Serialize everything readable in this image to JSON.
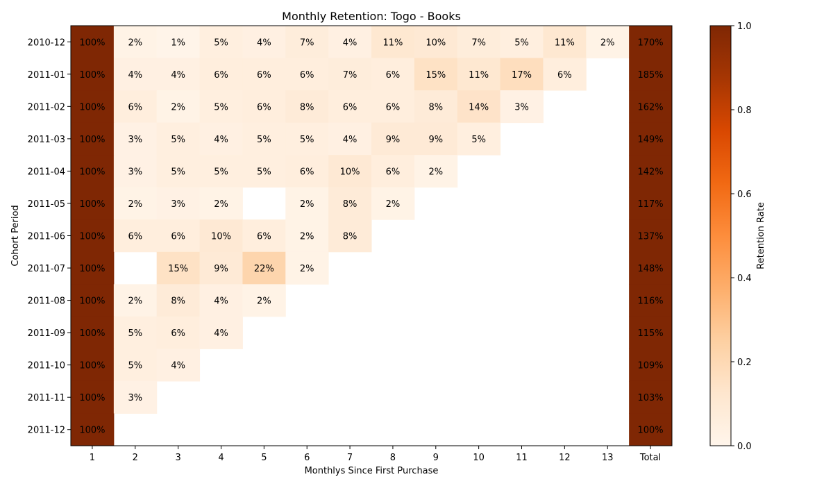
{
  "chart_data": {
    "type": "heatmap",
    "title": "Monthly Retention: Togo - Books",
    "xlabel": "Monthlys Since First Purchase",
    "ylabel": "Cohort Period",
    "x_categories": [
      "1",
      "2",
      "3",
      "4",
      "5",
      "6",
      "7",
      "8",
      "9",
      "10",
      "11",
      "12",
      "13",
      "Total"
    ],
    "y_categories": [
      "2010-12",
      "2011-01",
      "2011-02",
      "2011-03",
      "2011-04",
      "2011-05",
      "2011-06",
      "2011-07",
      "2011-08",
      "2011-09",
      "2011-10",
      "2011-11",
      "2011-12"
    ],
    "values": [
      [
        1.0,
        0.02,
        0.01,
        0.05,
        0.04,
        0.07,
        0.04,
        0.11,
        0.1,
        0.07,
        0.05,
        0.11,
        0.02,
        1.7
      ],
      [
        1.0,
        0.04,
        0.04,
        0.06,
        0.06,
        0.06,
        0.07,
        0.06,
        0.15,
        0.11,
        0.17,
        0.06,
        null,
        1.85
      ],
      [
        1.0,
        0.06,
        0.02,
        0.05,
        0.06,
        0.08,
        0.06,
        0.06,
        0.08,
        0.14,
        0.03,
        null,
        null,
        1.62
      ],
      [
        1.0,
        0.03,
        0.05,
        0.04,
        0.05,
        0.05,
        0.04,
        0.09,
        0.09,
        0.05,
        null,
        null,
        null,
        1.49
      ],
      [
        1.0,
        0.03,
        0.05,
        0.05,
        0.05,
        0.06,
        0.1,
        0.06,
        0.02,
        null,
        null,
        null,
        null,
        1.42
      ],
      [
        1.0,
        0.02,
        0.03,
        0.02,
        null,
        0.02,
        0.08,
        0.02,
        null,
        null,
        null,
        null,
        null,
        1.17
      ],
      [
        1.0,
        0.06,
        0.06,
        0.1,
        0.06,
        0.02,
        0.08,
        null,
        null,
        null,
        null,
        null,
        null,
        1.37
      ],
      [
        1.0,
        null,
        0.15,
        0.09,
        0.22,
        0.02,
        null,
        null,
        null,
        null,
        null,
        null,
        null,
        1.48
      ],
      [
        1.0,
        0.02,
        0.08,
        0.04,
        0.02,
        null,
        null,
        null,
        null,
        null,
        null,
        null,
        null,
        1.16
      ],
      [
        1.0,
        0.05,
        0.06,
        0.04,
        null,
        null,
        null,
        null,
        null,
        null,
        null,
        null,
        null,
        1.15
      ],
      [
        1.0,
        0.05,
        0.04,
        null,
        null,
        null,
        null,
        null,
        null,
        null,
        null,
        null,
        null,
        1.09
      ],
      [
        1.0,
        0.03,
        null,
        null,
        null,
        null,
        null,
        null,
        null,
        null,
        null,
        null,
        null,
        1.03
      ],
      [
        1.0,
        null,
        null,
        null,
        null,
        null,
        null,
        null,
        null,
        null,
        null,
        null,
        null,
        1.0
      ]
    ],
    "labels": [
      [
        "100%",
        "2%",
        "1%",
        "5%",
        "4%",
        "7%",
        "4%",
        "11%",
        "10%",
        "7%",
        "5%",
        "11%",
        "2%",
        "170%"
      ],
      [
        "100%",
        "4%",
        "4%",
        "6%",
        "6%",
        "6%",
        "7%",
        "6%",
        "15%",
        "11%",
        "17%",
        "6%",
        "",
        "185%"
      ],
      [
        "100%",
        "6%",
        "2%",
        "5%",
        "6%",
        "8%",
        "6%",
        "6%",
        "8%",
        "14%",
        "3%",
        "",
        "",
        "162%"
      ],
      [
        "100%",
        "3%",
        "5%",
        "4%",
        "5%",
        "5%",
        "4%",
        "9%",
        "9%",
        "5%",
        "",
        "",
        "",
        "149%"
      ],
      [
        "100%",
        "3%",
        "5%",
        "5%",
        "5%",
        "6%",
        "10%",
        "6%",
        "2%",
        "",
        "",
        "",
        "",
        "142%"
      ],
      [
        "100%",
        "2%",
        "3%",
        "2%",
        "",
        "2%",
        "8%",
        "2%",
        "",
        "",
        "",
        "",
        "",
        "117%"
      ],
      [
        "100%",
        "6%",
        "6%",
        "10%",
        "6%",
        "2%",
        "8%",
        "",
        "",
        "",
        "",
        "",
        "",
        "137%"
      ],
      [
        "100%",
        "",
        "15%",
        "9%",
        "22%",
        "2%",
        "",
        "",
        "",
        "",
        "",
        "",
        "",
        "148%"
      ],
      [
        "100%",
        "2%",
        "8%",
        "4%",
        "2%",
        "",
        "",
        "",
        "",
        "",
        "",
        "",
        "",
        "116%"
      ],
      [
        "100%",
        "5%",
        "6%",
        "4%",
        "",
        "",
        "",
        "",
        "",
        "",
        "",
        "",
        "",
        "115%"
      ],
      [
        "100%",
        "5%",
        "4%",
        "",
        "",
        "",
        "",
        "",
        "",
        "",
        "",
        "",
        "",
        "109%"
      ],
      [
        "100%",
        "3%",
        "",
        "",
        "",
        "",
        "",
        "",
        "",
        "",
        "",
        "",
        "",
        "103%"
      ],
      [
        "100%",
        "",
        "",
        "",
        "",
        "",
        "",
        "",
        "",
        "",
        "",
        "",
        "",
        "100%"
      ]
    ],
    "colorbar": {
      "label": "Retention Rate",
      "range": [
        0,
        1
      ],
      "ticks": [
        "0.0",
        "0.2",
        "0.4",
        "0.6",
        "0.8",
        "1.0"
      ],
      "colormap": "Oranges"
    },
    "grid": false
  }
}
